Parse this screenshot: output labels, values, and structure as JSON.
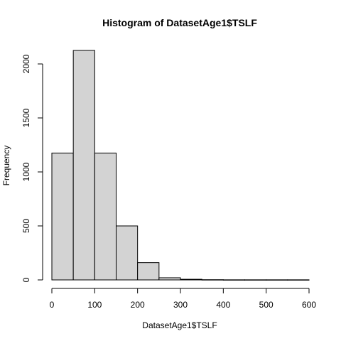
{
  "chart_data": {
    "type": "bar",
    "title": "Histogram of DatasetAge1$TSLF",
    "xlabel": "DatasetAge1$TSLF",
    "ylabel": "Frequency",
    "bins": [
      {
        "from": 0,
        "to": 50,
        "count": 1175
      },
      {
        "from": 50,
        "to": 100,
        "count": 2125
      },
      {
        "from": 100,
        "to": 150,
        "count": 1175
      },
      {
        "from": 150,
        "to": 200,
        "count": 500
      },
      {
        "from": 200,
        "to": 250,
        "count": 160
      },
      {
        "from": 250,
        "to": 300,
        "count": 20
      },
      {
        "from": 300,
        "to": 350,
        "count": 6
      },
      {
        "from": 350,
        "to": 400,
        "count": 2
      },
      {
        "from": 400,
        "to": 450,
        "count": 1
      },
      {
        "from": 450,
        "to": 500,
        "count": 1
      },
      {
        "from": 500,
        "to": 550,
        "count": 1
      },
      {
        "from": 550,
        "to": 600,
        "count": 1
      }
    ],
    "xlim": [
      0,
      600
    ],
    "ylim": [
      0,
      2125
    ],
    "xticks": [
      "0",
      "100",
      "200",
      "300",
      "400",
      "500",
      "600"
    ],
    "yticks": [
      "0",
      "500",
      "1000",
      "1500",
      "2000"
    ],
    "bar_color": "#d3d3d3",
    "grid": false,
    "legend": "none"
  }
}
